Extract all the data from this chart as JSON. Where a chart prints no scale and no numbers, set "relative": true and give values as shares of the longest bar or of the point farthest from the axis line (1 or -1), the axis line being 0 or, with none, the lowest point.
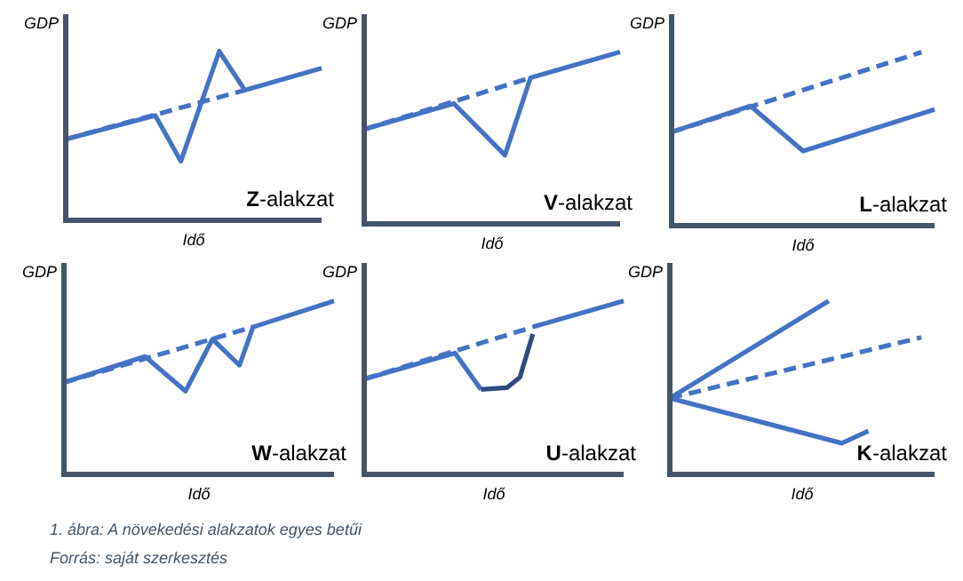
{
  "chart_data": [
    {
      "type": "line",
      "title": "Z-alakzat",
      "xlabel": "Idő",
      "ylabel": "GDP",
      "relative": true,
      "categories": [
        null,
        null,
        null,
        null,
        null,
        null,
        null,
        null,
        null,
        null,
        null,
        null,
        null,
        null,
        null,
        null,
        null,
        null,
        null,
        null,
        null
      ],
      "series": [
        {
          "color": "#4472c4",
          "line_style": "dashed",
          "values": [
            0.48,
            null,
            null,
            null,
            null,
            null,
            null,
            null,
            null,
            null,
            null,
            null,
            null,
            null,
            0.77,
            null,
            null,
            null,
            null,
            null,
            null
          ]
        },
        {
          "color": "#4472c4",
          "values": [
            0.48,
            null,
            null,
            null,
            null,
            null,
            null,
            0.62,
            null,
            0.35,
            null,
            null,
            1,
            null,
            0.77,
            null,
            null,
            null,
            null,
            null,
            0.9
          ]
        }
      ]
    },
    {
      "type": "line",
      "title": "V-alakzat",
      "xlabel": "Idő",
      "ylabel": "GDP",
      "relative": true,
      "categories": [
        null,
        null,
        null,
        null,
        null,
        null,
        null,
        null,
        null,
        null,
        null,
        null,
        null,
        null,
        null,
        null,
        null,
        null,
        null,
        null,
        null
      ],
      "series": [
        {
          "color": "#4472c4",
          "line_style": "dashed",
          "values": [
            0.55,
            null,
            null,
            null,
            null,
            null,
            null,
            null,
            null,
            null,
            null,
            null,
            null,
            0.85,
            null,
            null,
            null,
            null,
            null,
            null,
            null
          ]
        },
        {
          "color": "#4472c4",
          "values": [
            0.55,
            null,
            null,
            null,
            null,
            null,
            null,
            0.7,
            null,
            null,
            null,
            0.4,
            null,
            0.85,
            null,
            null,
            null,
            null,
            null,
            null,
            1
          ]
        }
      ]
    },
    {
      "type": "line",
      "title": "L-alakzat",
      "xlabel": "Idő",
      "ylabel": "GDP",
      "relative": true,
      "categories": [
        null,
        null,
        null,
        null,
        null,
        null,
        null,
        null,
        null,
        null,
        null,
        null,
        null,
        null,
        null,
        null,
        null,
        null,
        null,
        null,
        null
      ],
      "series": [
        {
          "color": "#4472c4",
          "line_style": "dashed",
          "values": [
            0.54,
            null,
            null,
            null,
            null,
            null,
            null,
            null,
            null,
            null,
            null,
            null,
            null,
            null,
            null,
            null,
            null,
            null,
            null,
            1,
            null
          ]
        },
        {
          "color": "#4472c4",
          "values": [
            0.54,
            null,
            null,
            null,
            null,
            null,
            0.69,
            null,
            null,
            null,
            0.43,
            null,
            null,
            null,
            null,
            null,
            null,
            null,
            null,
            null,
            0.67
          ]
        }
      ]
    },
    {
      "type": "line",
      "title": "W-alakzat",
      "xlabel": "Idő",
      "ylabel": "GDP",
      "relative": true,
      "annotations": [
        "1. ábra: A növekedési alakzatok egyes betűi",
        "Forrás: saját szerkesztés"
      ],
      "categories": [
        null,
        null,
        null,
        null,
        null,
        null,
        null,
        null,
        null,
        null,
        null,
        null,
        null,
        null,
        null,
        null,
        null,
        null,
        null,
        null,
        null
      ],
      "series": [
        {
          "color": "#4472c4",
          "line_style": "dashed",
          "values": [
            0.53,
            null,
            null,
            null,
            null,
            null,
            null,
            null,
            null,
            null,
            null,
            null,
            null,
            null,
            0.85,
            null,
            null,
            null,
            null,
            null,
            null
          ]
        },
        {
          "color": "#4472c4",
          "values": [
            0.53,
            null,
            null,
            null,
            null,
            null,
            0.68,
            null,
            null,
            0.48,
            null,
            0.78,
            null,
            0.63,
            0.85,
            null,
            null,
            null,
            null,
            null,
            1
          ]
        }
      ]
    },
    {
      "type": "line",
      "title": "U-alakzat",
      "xlabel": "Idő",
      "ylabel": "GDP",
      "relative": true,
      "categories": [
        null,
        null,
        null,
        null,
        null,
        null,
        null,
        null,
        null,
        null,
        null,
        null,
        null,
        null,
        null,
        null,
        null,
        null,
        null,
        null,
        null
      ],
      "series": [
        {
          "color": "#4472c4",
          "line_style": "dashed",
          "values": [
            0.55,
            null,
            null,
            null,
            null,
            null,
            null,
            null,
            null,
            null,
            null,
            null,
            null,
            0.85,
            null,
            null,
            null,
            null,
            null,
            null,
            null
          ]
        },
        {
          "color": "#4472c4",
          "values": [
            0.55,
            null,
            null,
            null,
            null,
            null,
            null,
            0.7,
            null,
            0.49,
            null,
            null,
            null,
            null,
            null,
            null,
            null,
            null,
            null,
            null,
            null
          ]
        },
        {
          "color": "#2e4a7d",
          "values": [
            null,
            null,
            null,
            null,
            null,
            null,
            null,
            null,
            null,
            0.49,
            null,
            0.5,
            0.56,
            0.81,
            null,
            null,
            null,
            null,
            null,
            null,
            null
          ]
        },
        {
          "color": "#4472c4",
          "values": [
            null,
            null,
            null,
            null,
            null,
            null,
            null,
            null,
            null,
            null,
            null,
            null,
            null,
            0.85,
            null,
            null,
            null,
            null,
            null,
            null,
            1
          ]
        }
      ]
    },
    {
      "type": "line",
      "title": "K-alakzat",
      "xlabel": "Idő",
      "ylabel": "GDP",
      "relative": true,
      "categories": [
        null,
        null,
        null,
        null,
        null,
        null,
        null,
        null,
        null,
        null,
        null,
        null,
        null,
        null,
        null,
        null,
        null,
        null,
        null,
        null,
        null
      ],
      "series": [
        {
          "color": "#4472c4",
          "line_style": "dashed",
          "values": [
            0.44,
            null,
            null,
            null,
            null,
            null,
            null,
            null,
            null,
            null,
            null,
            null,
            null,
            null,
            null,
            null,
            null,
            null,
            null,
            0.79,
            null
          ]
        },
        {
          "color": "#4472c4",
          "values": [
            0.44,
            null,
            null,
            null,
            null,
            null,
            null,
            null,
            null,
            null,
            null,
            null,
            1,
            null,
            null,
            null,
            null,
            null,
            null,
            null,
            null
          ]
        },
        {
          "color": "#4472c4",
          "values": [
            0.44,
            null,
            null,
            null,
            null,
            null,
            null,
            null,
            null,
            null,
            null,
            null,
            null,
            0.18,
            null,
            0.25,
            null,
            null,
            null,
            null,
            null
          ]
        }
      ]
    }
  ]
}
